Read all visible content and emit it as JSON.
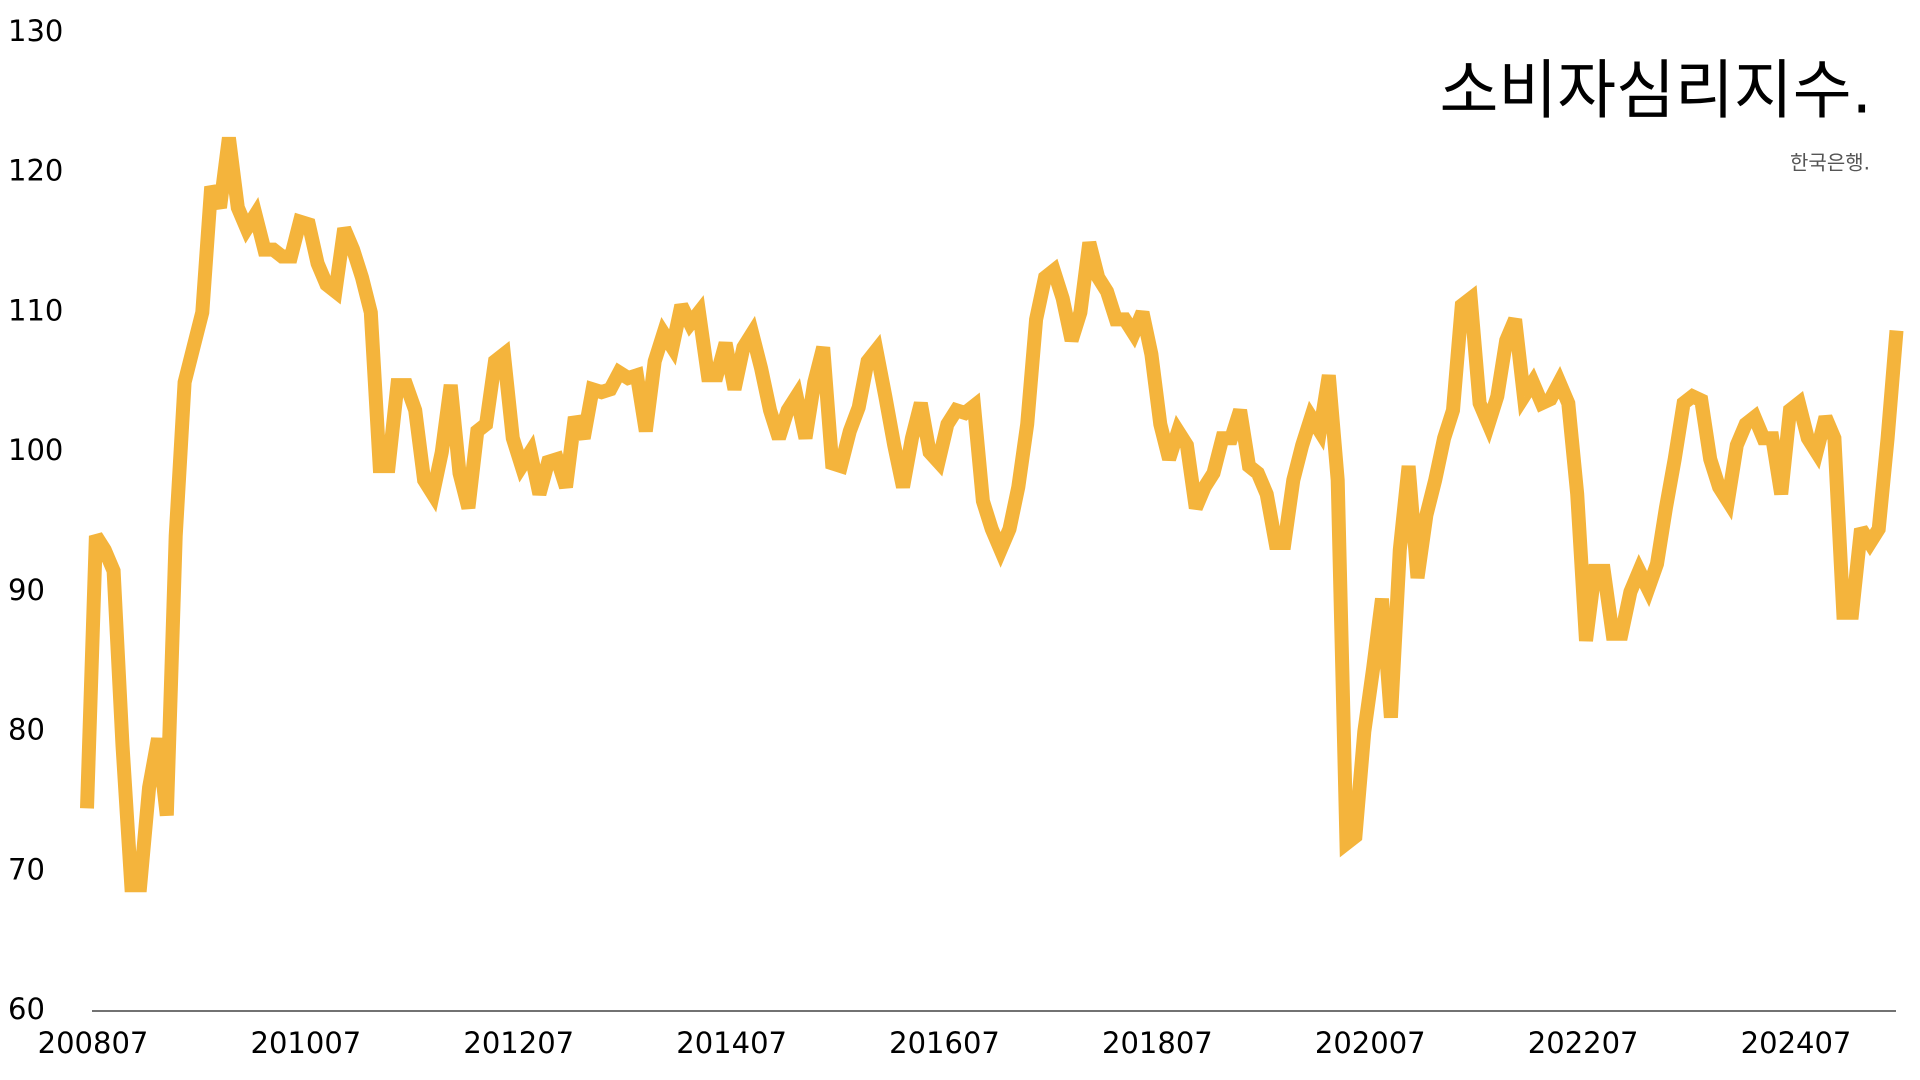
{
  "chart_data": {
    "type": "line",
    "title": "소비자심리지수.",
    "subtitle": "한국은행.",
    "categories": [
      "200807",
      null,
      null,
      null,
      null,
      null,
      null,
      null,
      null,
      null,
      null,
      null,
      null,
      null,
      null,
      null,
      null,
      null,
      null,
      null,
      null,
      null,
      null,
      null,
      "201007",
      null,
      null,
      null,
      null,
      null,
      null,
      null,
      null,
      null,
      null,
      null,
      null,
      null,
      null,
      null,
      null,
      null,
      null,
      null,
      null,
      null,
      null,
      null,
      "201207",
      null,
      null,
      null,
      null,
      null,
      null,
      null,
      null,
      null,
      null,
      null,
      null,
      null,
      null,
      null,
      null,
      null,
      null,
      null,
      null,
      null,
      null,
      null,
      "201407",
      null,
      null,
      null,
      null,
      null,
      null,
      null,
      null,
      null,
      null,
      null,
      null,
      null,
      null,
      null,
      null,
      null,
      null,
      null,
      null,
      null,
      null,
      null,
      "201607",
      null,
      null,
      null,
      null,
      null,
      null,
      null,
      null,
      null,
      null,
      null,
      null,
      null,
      null,
      null,
      null,
      null,
      null,
      null,
      null,
      null,
      null,
      null,
      "201807",
      null,
      null,
      null,
      null,
      null,
      null,
      null,
      null,
      null,
      null,
      null,
      null,
      null,
      null,
      null,
      null,
      null,
      null,
      null,
      null,
      null,
      null,
      null,
      "202007",
      null,
      null,
      null,
      null,
      null,
      null,
      null,
      null,
      null,
      null,
      null,
      null,
      null,
      null,
      null,
      null,
      null,
      null,
      null,
      null,
      null,
      null,
      null,
      "202207",
      null,
      null,
      null,
      null,
      null,
      null,
      null,
      null,
      null,
      null,
      null,
      null,
      null,
      null,
      null,
      null,
      null,
      null,
      null,
      null,
      null,
      null,
      null,
      "202407",
      null,
      null,
      null,
      null,
      null,
      null,
      null,
      null,
      null,
      null,
      null,
      null
    ],
    "series": [
      {
        "name": "소비자심리지수",
        "color": "#f4b43c",
        "values": [
          74.5,
          94,
          93,
          91.5,
          79,
          69,
          69,
          76,
          79.5,
          74,
          94,
          105,
          107.5,
          110,
          119,
          117.5,
          122.5,
          117.5,
          116,
          117,
          114.5,
          114.5,
          114,
          114,
          116.5,
          116.3,
          113.5,
          112,
          111.5,
          116,
          114.5,
          112.5,
          110,
          99,
          99,
          104.8,
          104.8,
          103,
          98,
          97,
          100,
          104.8,
          98.5,
          96,
          101.5,
          102,
          106.5,
          107,
          101,
          99,
          100,
          97,
          99.3,
          99.5,
          97.5,
          102.5,
          101,
          104.5,
          104.3,
          104.5,
          105.7,
          105.3,
          105.5,
          101.5,
          106.5,
          108.5,
          107.5,
          110.5,
          109.2,
          110,
          105.5,
          105.5,
          107.8,
          104.5,
          107.5,
          108.5,
          106,
          103,
          101,
          103,
          104,
          101,
          105,
          107.5,
          99.2,
          99,
          101.5,
          103.2,
          106.5,
          107.3,
          104,
          100.5,
          97.5,
          101,
          103.5,
          100,
          99.3,
          102,
          103,
          102.8,
          103.3,
          96.5,
          94.5,
          93,
          94.5,
          97.5,
          102,
          109.5,
          112.5,
          113,
          111,
          108,
          110,
          115,
          112.5,
          111.5,
          109.5,
          109.5,
          108.5,
          110,
          107,
          102,
          99.5,
          101.5,
          100.5,
          96,
          97.5,
          98.5,
          101,
          101,
          103,
          99,
          98.5,
          97,
          93.5,
          93.5,
          98,
          100.5,
          102.5,
          101.5,
          105.5,
          98,
          72,
          72.5,
          80,
          84.5,
          89.5,
          81,
          93,
          99,
          91,
          95.5,
          98,
          101,
          103,
          110.5,
          111,
          103.5,
          102,
          104,
          108,
          109.5,
          104,
          105,
          103.5,
          103.8,
          105,
          103.5,
          97,
          86.5,
          91.5,
          91.5,
          87,
          87,
          90,
          91.5,
          90.2,
          92,
          96,
          99.5,
          103.5,
          104,
          103.7,
          99.5,
          97.5,
          96.5,
          100.5,
          102,
          102.5,
          101,
          101,
          97,
          103,
          103.5,
          101,
          100,
          102.5,
          101,
          88.5,
          88.5,
          94.5,
          93.5,
          94.5,
          101,
          108.7
        ]
      }
    ],
    "ylim": [
      60,
      130
    ],
    "yticks": [
      60,
      70,
      80,
      90,
      100,
      110,
      120,
      130
    ],
    "grid": false
  }
}
